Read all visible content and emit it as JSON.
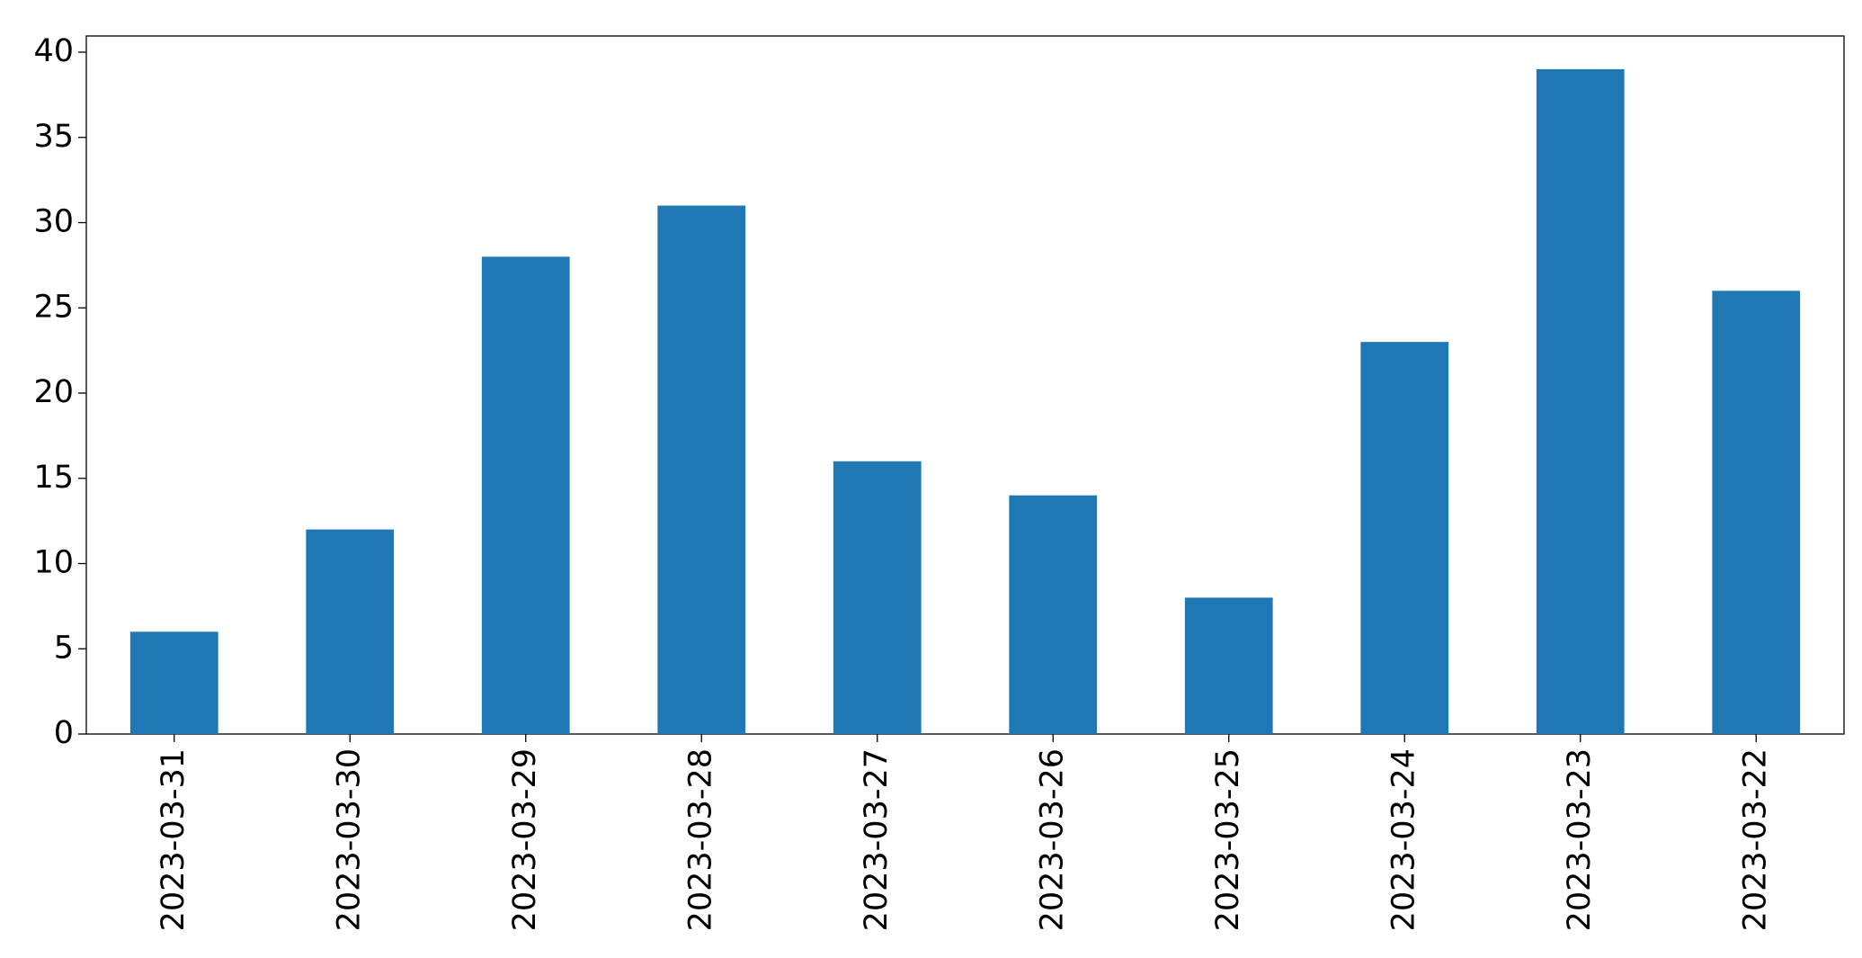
{
  "chart_data": {
    "type": "bar",
    "categories": [
      "2023-03-31",
      "2023-03-30",
      "2023-03-29",
      "2023-03-28",
      "2023-03-27",
      "2023-03-26",
      "2023-03-25",
      "2023-03-24",
      "2023-03-23",
      "2023-03-22"
    ],
    "values": [
      6,
      12,
      28,
      31,
      16,
      14,
      8,
      23,
      39,
      26
    ],
    "color": "#1f77b4",
    "ylim": [
      0,
      40.95
    ],
    "yticks": [
      0,
      5,
      10,
      15,
      20,
      25,
      30,
      35,
      40
    ],
    "grid": false
  }
}
